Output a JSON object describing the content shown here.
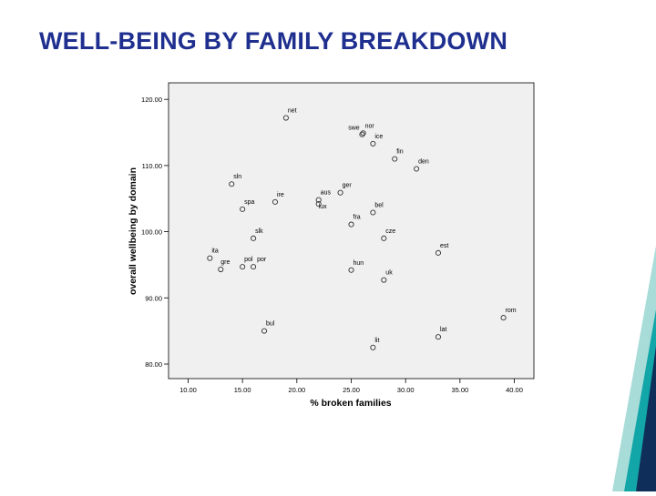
{
  "slide": {
    "title": "WELL-BEING BY FAMILY BREAKDOWN"
  },
  "colors": {
    "title": "#1f2f8f",
    "plot_background": "#f0f0f0",
    "marker": "#333333",
    "deco_teal": "#12a6a8",
    "deco_light": "#a8dcd9",
    "deco_navy": "#0f2f5a"
  },
  "chart_data": {
    "type": "scatter",
    "title": "",
    "xlabel": "% broken families",
    "ylabel": "overall wellbeing by domain",
    "xlim": [
      8.2,
      41.8
    ],
    "ylim": [
      77.8,
      122.5
    ],
    "xticks": [
      10,
      15,
      20,
      25,
      30,
      35,
      40
    ],
    "yticks": [
      80,
      90,
      100,
      110,
      120
    ],
    "xtick_labels": [
      "10.00",
      "15.00",
      "20.00",
      "25.00",
      "30.00",
      "35.00",
      "40.00"
    ],
    "ytick_labels": [
      "80.00",
      "90.00",
      "100.00",
      "110.00",
      "120.00"
    ],
    "grid": false,
    "marker": "open-circle",
    "points": [
      {
        "label": "net",
        "x": 19.0,
        "y": 117.2
      },
      {
        "label": "swe",
        "x": 26.0,
        "y": 114.7
      },
      {
        "label": "nor",
        "x": 26.1,
        "y": 114.9
      },
      {
        "label": "ice",
        "x": 27.0,
        "y": 113.3
      },
      {
        "label": "fin",
        "x": 29.0,
        "y": 111.0
      },
      {
        "label": "den",
        "x": 31.0,
        "y": 109.5
      },
      {
        "label": "sln",
        "x": 14.0,
        "y": 107.2
      },
      {
        "label": "ger",
        "x": 24.0,
        "y": 105.9
      },
      {
        "label": "aus",
        "x": 22.0,
        "y": 104.8
      },
      {
        "label": "lux",
        "x": 22.0,
        "y": 104.2
      },
      {
        "label": "ire",
        "x": 18.0,
        "y": 104.5
      },
      {
        "label": "spa",
        "x": 15.0,
        "y": 103.4
      },
      {
        "label": "bel",
        "x": 27.0,
        "y": 102.9
      },
      {
        "label": "fra",
        "x": 25.0,
        "y": 101.1
      },
      {
        "label": "slk",
        "x": 16.0,
        "y": 99.0
      },
      {
        "label": "cze",
        "x": 28.0,
        "y": 99.0
      },
      {
        "label": "est",
        "x": 33.0,
        "y": 96.8
      },
      {
        "label": "ita",
        "x": 12.0,
        "y": 96.0
      },
      {
        "label": "gre",
        "x": 13.0,
        "y": 94.3
      },
      {
        "label": "pol",
        "x": 15.0,
        "y": 94.7
      },
      {
        "label": "por",
        "x": 16.0,
        "y": 94.7
      },
      {
        "label": "hun",
        "x": 25.0,
        "y": 94.2
      },
      {
        "label": "uk",
        "x": 28.0,
        "y": 92.7
      },
      {
        "label": "rom",
        "x": 39.0,
        "y": 87.0
      },
      {
        "label": "bul",
        "x": 17.0,
        "y": 85.0
      },
      {
        "label": "lat",
        "x": 33.0,
        "y": 84.1
      },
      {
        "label": "lit",
        "x": 27.0,
        "y": 82.5
      }
    ]
  }
}
